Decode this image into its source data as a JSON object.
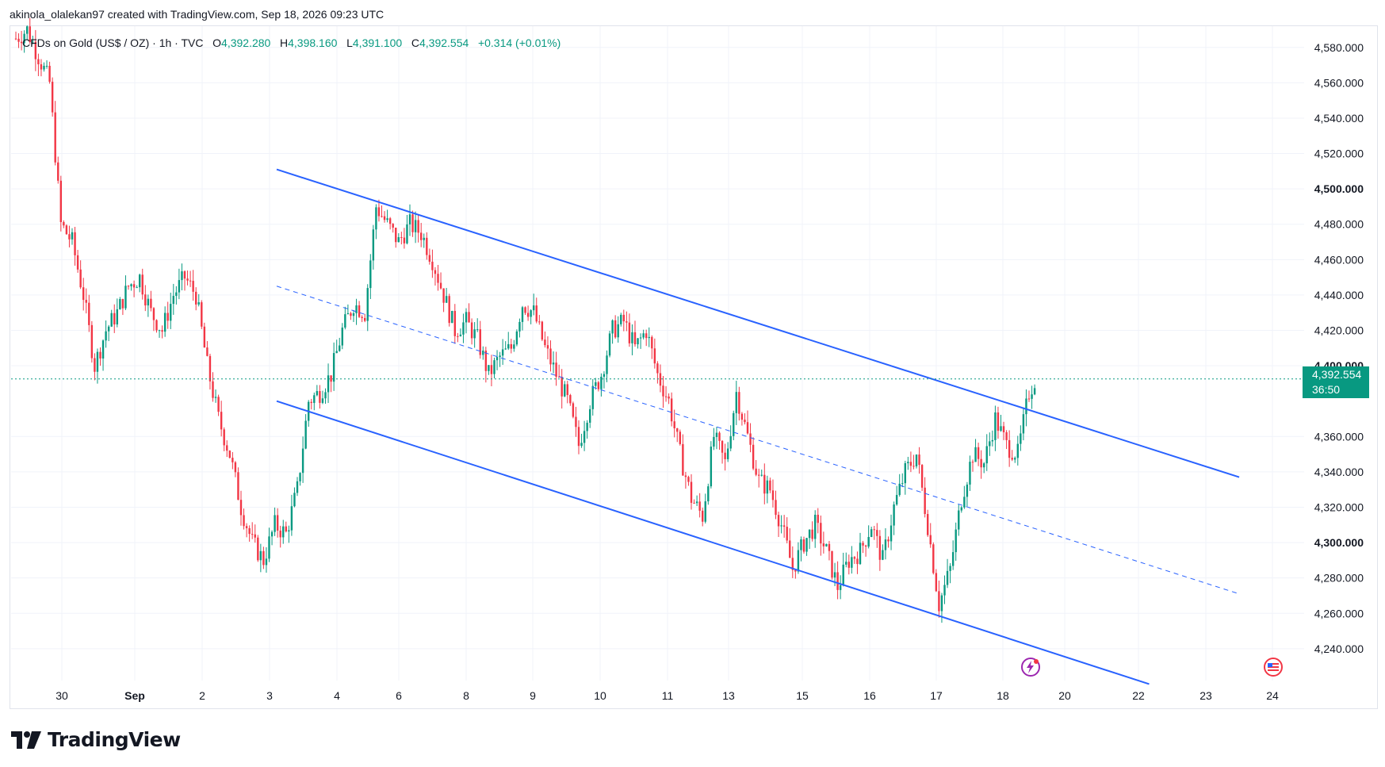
{
  "header": {
    "attribution": "akinola_olalekan97 created with TradingView.com, Sep 18, 2026 09:23 UTC"
  },
  "symbol": {
    "name": "CFDs on Gold (US$ / OZ) · 1h · TVC",
    "open_label": "O",
    "open": "4,392.280",
    "high_label": "H",
    "high": "4,398.160",
    "low_label": "L",
    "low": "4,391.100",
    "close_label": "C",
    "close": "4,392.554",
    "change": "+0.314 (+0.01%)"
  },
  "current_price": {
    "value": "4,392.554",
    "countdown": "36:50"
  },
  "footer": {
    "brand": "TradingView"
  },
  "colors": {
    "up": "#089981",
    "down": "#f23645",
    "channel": "#2962ff",
    "grid": "#f0f3fa"
  },
  "icons": [
    "tradingview-logo-icon",
    "lightning-event-icon",
    "us-flag-event-icon"
  ],
  "chart_data": {
    "type": "candlestick",
    "ylim": [
      4222,
      4592
    ],
    "y_ticks": [
      {
        "value": 4240,
        "label": "4,240.000",
        "bold": false
      },
      {
        "value": 4260,
        "label": "4,260.000",
        "bold": false
      },
      {
        "value": 4280,
        "label": "4,280.000",
        "bold": false
      },
      {
        "value": 4300,
        "label": "4,300.000",
        "bold": true
      },
      {
        "value": 4320,
        "label": "4,320.000",
        "bold": false
      },
      {
        "value": 4340,
        "label": "4,340.000",
        "bold": false
      },
      {
        "value": 4360,
        "label": "4,360.000",
        "bold": false
      },
      {
        "value": 4400,
        "label": "4,400.000",
        "bold": true
      },
      {
        "value": 4420,
        "label": "4,420.000",
        "bold": false
      },
      {
        "value": 4440,
        "label": "4,440.000",
        "bold": false
      },
      {
        "value": 4460,
        "label": "4,460.000",
        "bold": false
      },
      {
        "value": 4480,
        "label": "4,480.000",
        "bold": false
      },
      {
        "value": 4500,
        "label": "4,500.000",
        "bold": true
      },
      {
        "value": 4520,
        "label": "4,520.000",
        "bold": false
      },
      {
        "value": 4540,
        "label": "4,540.000",
        "bold": false
      },
      {
        "value": 4560,
        "label": "4,560.000",
        "bold": false
      },
      {
        "value": 4580,
        "label": "4,580.000",
        "bold": false
      }
    ],
    "x_ticks": [
      {
        "label": "30",
        "bold": false
      },
      {
        "label": "Sep",
        "bold": true
      },
      {
        "label": "2",
        "bold": false
      },
      {
        "label": "3",
        "bold": false
      },
      {
        "label": "4",
        "bold": false
      },
      {
        "label": "6",
        "bold": false
      },
      {
        "label": "8",
        "bold": false
      },
      {
        "label": "9",
        "bold": false
      },
      {
        "label": "10",
        "bold": false
      },
      {
        "label": "11",
        "bold": false
      },
      {
        "label": "13",
        "bold": false
      },
      {
        "label": "15",
        "bold": false
      },
      {
        "label": "16",
        "bold": false
      },
      {
        "label": "17",
        "bold": false
      },
      {
        "label": "18",
        "bold": false
      },
      {
        "label": "20",
        "bold": false
      },
      {
        "label": "22",
        "bold": false
      },
      {
        "label": "23",
        "bold": false
      },
      {
        "label": "24",
        "bold": false
      }
    ],
    "price_path": [
      [
        0,
        4585
      ],
      [
        2,
        4590
      ],
      [
        4,
        4575
      ],
      [
        6,
        4560
      ],
      [
        8,
        4480
      ],
      [
        10,
        4470
      ],
      [
        12,
        4440
      ],
      [
        14,
        4400
      ],
      [
        16,
        4420
      ],
      [
        18,
        4430
      ],
      [
        20,
        4445
      ],
      [
        22,
        4450
      ],
      [
        24,
        4430
      ],
      [
        26,
        4420
      ],
      [
        28,
        4440
      ],
      [
        30,
        4450
      ],
      [
        32,
        4440
      ],
      [
        34,
        4400
      ],
      [
        36,
        4370
      ],
      [
        38,
        4350
      ],
      [
        40,
        4320
      ],
      [
        42,
        4300
      ],
      [
        44,
        4290
      ],
      [
        46,
        4310
      ],
      [
        48,
        4305
      ],
      [
        50,
        4330
      ],
      [
        52,
        4380
      ],
      [
        54,
        4385
      ],
      [
        56,
        4395
      ],
      [
        58,
        4420
      ],
      [
        60,
        4435
      ],
      [
        62,
        4430
      ],
      [
        64,
        4490
      ],
      [
        66,
        4480
      ],
      [
        68,
        4470
      ],
      [
        70,
        4480
      ],
      [
        72,
        4475
      ],
      [
        74,
        4460
      ],
      [
        76,
        4440
      ],
      [
        78,
        4420
      ],
      [
        80,
        4425
      ],
      [
        82,
        4415
      ],
      [
        84,
        4395
      ],
      [
        86,
        4405
      ],
      [
        88,
        4410
      ],
      [
        90,
        4435
      ],
      [
        92,
        4430
      ],
      [
        94,
        4410
      ],
      [
        96,
        4395
      ],
      [
        98,
        4380
      ],
      [
        100,
        4355
      ],
      [
        102,
        4380
      ],
      [
        104,
        4395
      ],
      [
        106,
        4420
      ],
      [
        108,
        4425
      ],
      [
        110,
        4410
      ],
      [
        112,
        4420
      ],
      [
        114,
        4395
      ],
      [
        116,
        4380
      ],
      [
        118,
        4350
      ],
      [
        120,
        4325
      ],
      [
        122,
        4315
      ],
      [
        124,
        4360
      ],
      [
        126,
        4345
      ],
      [
        128,
        4385
      ],
      [
        130,
        4360
      ],
      [
        132,
        4335
      ],
      [
        134,
        4330
      ],
      [
        136,
        4310
      ],
      [
        138,
        4285
      ],
      [
        140,
        4300
      ],
      [
        142,
        4310
      ],
      [
        144,
        4295
      ],
      [
        146,
        4275
      ],
      [
        148,
        4290
      ],
      [
        150,
        4295
      ],
      [
        152,
        4310
      ],
      [
        154,
        4290
      ],
      [
        156,
        4320
      ],
      [
        158,
        4340
      ],
      [
        160,
        4350
      ],
      [
        162,
        4310
      ],
      [
        164,
        4265
      ],
      [
        166,
        4285
      ],
      [
        168,
        4325
      ],
      [
        170,
        4350
      ],
      [
        172,
        4345
      ],
      [
        174,
        4370
      ],
      [
        176,
        4355
      ],
      [
        178,
        4350
      ],
      [
        180,
        4385
      ],
      [
        181,
        4392
      ]
    ],
    "upper_channel": [
      [
        0,
        4511
      ],
      [
        171,
        4337
      ]
    ],
    "mid_channel": [
      [
        0,
        4445
      ],
      [
        171,
        4271
      ]
    ],
    "lower_channel": [
      [
        0,
        4380
      ],
      [
        155,
        4220
      ]
    ],
    "current_price_value": 4392.554
  }
}
